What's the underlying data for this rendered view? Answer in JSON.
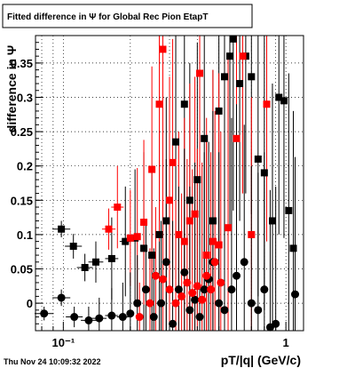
{
  "chart_data": {
    "type": "scatter",
    "title": "Fitted difference in Ψ  for Global Rec Pion EtapT",
    "xlabel": "pT/|q| (GeV/c)",
    "ylabel": "difference in Ψ",
    "timestamp": "Thu Nov 24 10:09:32 2022",
    "x_scale": "log",
    "xlim": [
      0.075,
      1.2
    ],
    "ylim": [
      -0.04,
      0.39
    ],
    "x_ticks": [
      {
        "value": 0.1,
        "label": "10⁻¹"
      },
      {
        "value": 1,
        "label": "1"
      }
    ],
    "y_ticks": [
      0,
      0.05,
      0.1,
      0.15,
      0.2,
      0.25,
      0.3,
      0.35
    ],
    "y_tick_labels": [
      "0",
      "0.05",
      "0.1",
      "0.15",
      "0.2",
      "0.25",
      "0.3",
      "0.35"
    ],
    "grid": true,
    "series": [
      {
        "marker": "square",
        "color": "#000000",
        "points": [
          {
            "x": 0.098,
            "y": 0.108,
            "ey": 0.012
          },
          {
            "x": 0.111,
            "y": 0.083,
            "ey": 0.018
          },
          {
            "x": 0.125,
            "y": 0.052,
            "ey": 0.02
          },
          {
            "x": 0.14,
            "y": 0.06,
            "ey": 0.03
          },
          {
            "x": 0.165,
            "y": 0.065,
            "ey": 0.06
          },
          {
            "x": 0.19,
            "y": 0.09,
            "ey": 0.08
          },
          {
            "x": 0.21,
            "y": 0.095,
            "ey": 0.1
          },
          {
            "x": 0.23,
            "y": 0.08,
            "ey": 0.14
          },
          {
            "x": 0.25,
            "y": 0.07,
            "ey": 0.12
          },
          {
            "x": 0.27,
            "y": 0.1,
            "ey": 0.15
          },
          {
            "x": 0.29,
            "y": 0.12,
            "ey": 0.18
          },
          {
            "x": 0.32,
            "y": 0.235,
            "ey": 0.2
          },
          {
            "x": 0.35,
            "y": 0.29,
            "ey": 0.25
          },
          {
            "x": 0.37,
            "y": 0.15,
            "ey": 0.2
          },
          {
            "x": 0.4,
            "y": 0.18,
            "ey": 0.2
          },
          {
            "x": 0.43,
            "y": 0.24,
            "ey": 0.22
          },
          {
            "x": 0.47,
            "y": 0.12,
            "ey": 0.22
          },
          {
            "x": 0.5,
            "y": 0.28,
            "ey": 0.25
          },
          {
            "x": 0.53,
            "y": 0.33,
            "ey": 0.25
          },
          {
            "x": 0.56,
            "y": 0.36,
            "ey": 0.25
          },
          {
            "x": 0.58,
            "y": 0.385,
            "ey": 0.25
          },
          {
            "x": 0.62,
            "y": 0.32,
            "ey": 0.2
          },
          {
            "x": 0.66,
            "y": 0.36,
            "ey": 0.2
          },
          {
            "x": 0.7,
            "y": 0.33,
            "ey": 0.2
          },
          {
            "x": 0.75,
            "y": 0.21,
            "ey": 0.2
          },
          {
            "x": 0.8,
            "y": 0.19,
            "ey": 0.2
          },
          {
            "x": 0.87,
            "y": 0.12,
            "ey": 0.2
          },
          {
            "x": 0.93,
            "y": 0.3,
            "ey": 0.2
          },
          {
            "x": 0.98,
            "y": 0.295,
            "ey": 0.2
          },
          {
            "x": 1.03,
            "y": 0.135,
            "ey": 0.2
          },
          {
            "x": 1.08,
            "y": 0.08,
            "ey": 0.2
          }
        ]
      },
      {
        "marker": "square",
        "color": "#ff0000",
        "points": [
          {
            "x": 0.16,
            "y": 0.108,
            "ey": 0.03
          },
          {
            "x": 0.175,
            "y": 0.14,
            "ey": 0.06
          },
          {
            "x": 0.2,
            "y": 0.095,
            "ey": 0.07
          },
          {
            "x": 0.215,
            "y": 0.097,
            "ey": 0.1
          },
          {
            "x": 0.23,
            "y": 0.118,
            "ey": 0.12
          },
          {
            "x": 0.25,
            "y": 0.195,
            "ey": 0.15
          },
          {
            "x": 0.27,
            "y": 0.29,
            "ey": 0.2
          },
          {
            "x": 0.28,
            "y": 0.37,
            "ey": 0.25
          },
          {
            "x": 0.3,
            "y": 0.15,
            "ey": 0.18
          },
          {
            "x": 0.31,
            "y": 0.205,
            "ey": 0.18
          },
          {
            "x": 0.33,
            "y": 0.1,
            "ey": 0.15
          },
          {
            "x": 0.35,
            "y": 0.09,
            "ey": 0.18
          },
          {
            "x": 0.37,
            "y": 0.12,
            "ey": 0.2
          },
          {
            "x": 0.39,
            "y": 0.13,
            "ey": 0.2
          },
          {
            "x": 0.41,
            "y": 0.335,
            "ey": 0.25
          },
          {
            "x": 0.44,
            "y": 0.07,
            "ey": 0.2
          },
          {
            "x": 0.47,
            "y": 0.09,
            "ey": 0.25
          },
          {
            "x": 0.5,
            "y": 0.085,
            "ey": 0.25
          },
          {
            "x": 0.55,
            "y": 0.11,
            "ey": 0.25
          },
          {
            "x": 0.6,
            "y": 0.24,
            "ey": 0.2
          },
          {
            "x": 0.64,
            "y": 0.36,
            "ey": 0.2
          },
          {
            "x": 0.7,
            "y": 0.1,
            "ey": 0.2
          },
          {
            "x": 0.82,
            "y": 0.29,
            "ey": 0.2
          }
        ]
      },
      {
        "marker": "circle",
        "color": "#000000",
        "points": [
          {
            "x": 0.082,
            "y": -0.015,
            "ey": 0.01
          },
          {
            "x": 0.098,
            "y": 0.008,
            "ey": 0.012
          },
          {
            "x": 0.112,
            "y": -0.02,
            "ey": 0.015
          },
          {
            "x": 0.13,
            "y": -0.025,
            "ey": 0.02
          },
          {
            "x": 0.145,
            "y": -0.022,
            "ey": 0.03
          },
          {
            "x": 0.165,
            "y": -0.018,
            "ey": 0.04
          },
          {
            "x": 0.185,
            "y": -0.02,
            "ey": 0.05
          },
          {
            "x": 0.2,
            "y": -0.015,
            "ey": 0.06
          },
          {
            "x": 0.215,
            "y": 0.0,
            "ey": 0.07
          },
          {
            "x": 0.235,
            "y": 0.02,
            "ey": 0.1
          },
          {
            "x": 0.255,
            "y": -0.02,
            "ey": 0.1
          },
          {
            "x": 0.275,
            "y": 0.0,
            "ey": 0.12
          },
          {
            "x": 0.29,
            "y": 0.06,
            "ey": 0.15
          },
          {
            "x": 0.31,
            "y": -0.03,
            "ey": 0.15
          },
          {
            "x": 0.33,
            "y": 0.02,
            "ey": 0.15
          },
          {
            "x": 0.35,
            "y": 0.045,
            "ey": 0.18
          },
          {
            "x": 0.37,
            "y": -0.01,
            "ey": 0.18
          },
          {
            "x": 0.39,
            "y": 0.005,
            "ey": 0.2
          },
          {
            "x": 0.41,
            "y": -0.02,
            "ey": 0.2
          },
          {
            "x": 0.43,
            "y": 0.02,
            "ey": 0.2
          },
          {
            "x": 0.45,
            "y": 0.035,
            "ey": 0.2
          },
          {
            "x": 0.47,
            "y": 0.06,
            "ey": 0.22
          },
          {
            "x": 0.5,
            "y": 0.0,
            "ey": 0.22
          },
          {
            "x": 0.53,
            "y": -0.01,
            "ey": 0.25
          },
          {
            "x": 0.57,
            "y": 0.02,
            "ey": 0.25
          },
          {
            "x": 0.6,
            "y": 0.04,
            "ey": 0.25
          },
          {
            "x": 0.65,
            "y": 0.06,
            "ey": 0.2
          },
          {
            "x": 0.7,
            "y": 0.0,
            "ey": 0.2
          },
          {
            "x": 0.75,
            "y": -0.01,
            "ey": 0.2
          },
          {
            "x": 0.8,
            "y": 0.02,
            "ey": 0.2
          },
          {
            "x": 0.85,
            "y": -0.035,
            "ey": 0.2
          },
          {
            "x": 0.9,
            "y": -0.03,
            "ey": 0.2
          },
          {
            "x": 1.1,
            "y": 0.013,
            "ey": 0.2
          }
        ]
      },
      {
        "marker": "circle",
        "color": "#ff0000",
        "points": [
          {
            "x": 0.22,
            "y": -0.02,
            "ey": 0.05
          },
          {
            "x": 0.245,
            "y": 0.0,
            "ey": 0.08
          },
          {
            "x": 0.26,
            "y": 0.04,
            "ey": 0.1
          },
          {
            "x": 0.28,
            "y": 0.035,
            "ey": 0.12
          },
          {
            "x": 0.3,
            "y": 0.02,
            "ey": 0.12
          },
          {
            "x": 0.32,
            "y": 0.0,
            "ey": 0.15
          },
          {
            "x": 0.34,
            "y": 0.01,
            "ey": 0.15
          },
          {
            "x": 0.36,
            "y": 0.03,
            "ey": 0.18
          },
          {
            "x": 0.38,
            "y": 0.015,
            "ey": 0.18
          },
          {
            "x": 0.4,
            "y": 0.025,
            "ey": 0.2
          },
          {
            "x": 0.42,
            "y": 0.005,
            "ey": 0.2
          },
          {
            "x": 0.44,
            "y": 0.04,
            "ey": 0.2
          },
          {
            "x": 0.46,
            "y": 0.02,
            "ey": 0.2
          },
          {
            "x": 0.48,
            "y": 0.06,
            "ey": 0.22
          },
          {
            "x": 0.51,
            "y": 0.03,
            "ey": 0.22
          }
        ]
      }
    ]
  }
}
